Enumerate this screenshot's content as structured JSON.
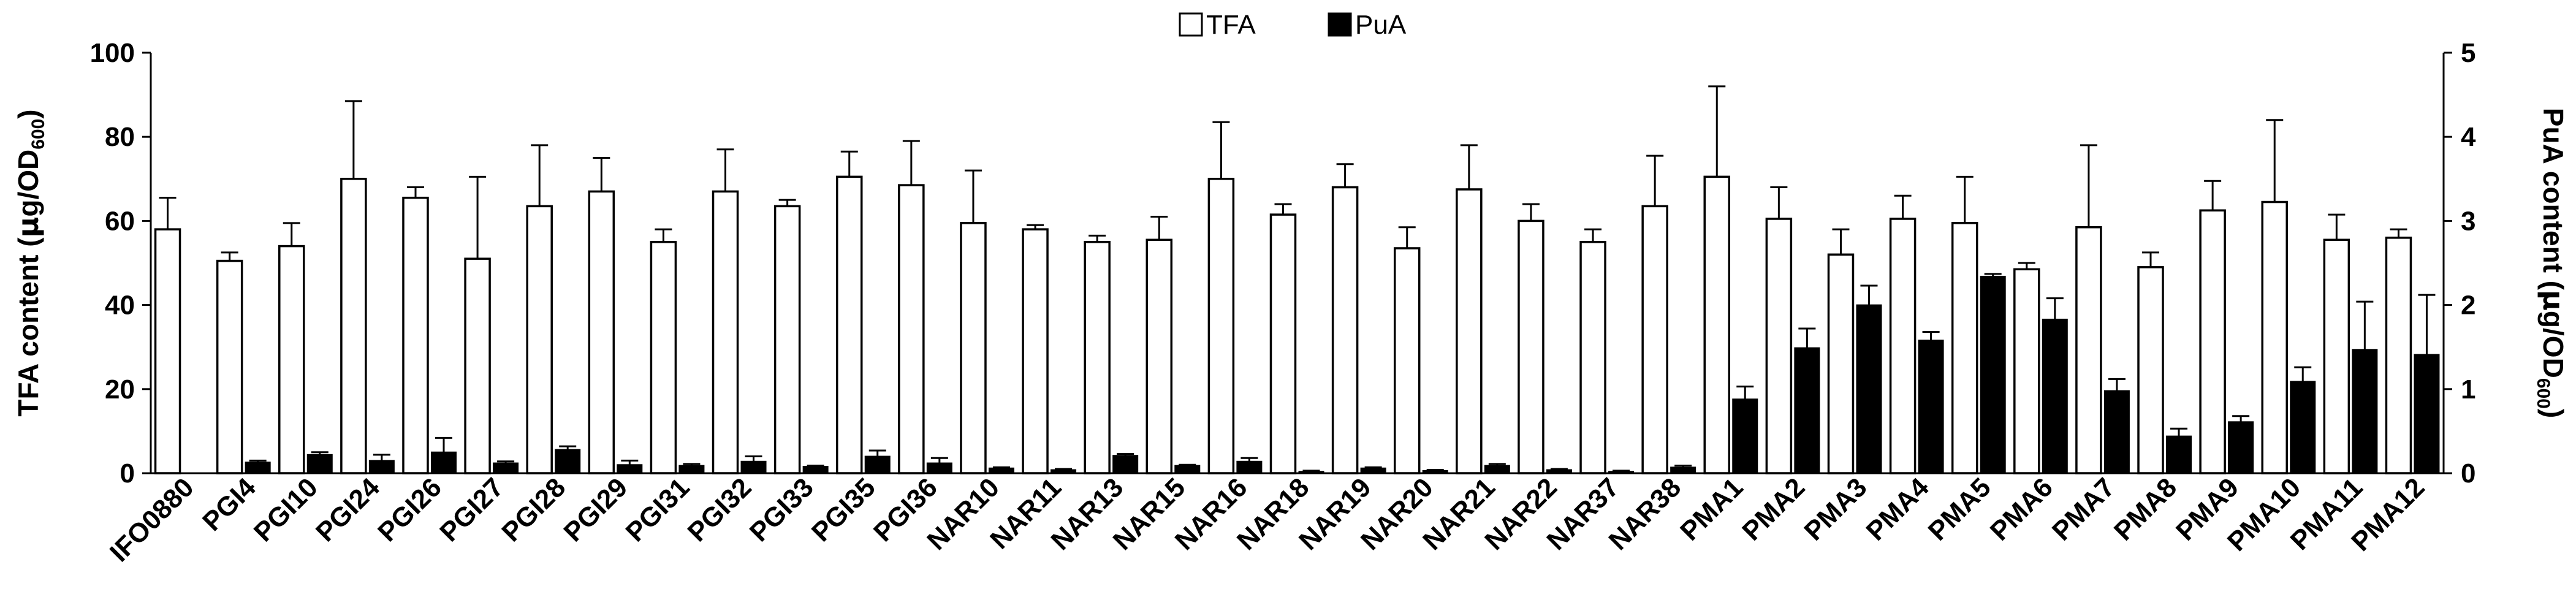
{
  "chart_data": {
    "type": "bar",
    "categories": [
      "IFO0880",
      "PGI4",
      "PGI10",
      "PGI24",
      "PGI26",
      "PGI27",
      "PGI28",
      "PGI29",
      "PGI31",
      "PGI32",
      "PGI33",
      "PGI35",
      "PGI36",
      "NAR10",
      "NAR11",
      "NAR13",
      "NAR15",
      "NAR16",
      "NAR18",
      "NAR19",
      "NAR20",
      "NAR21",
      "NAR22",
      "NAR37",
      "NAR38",
      "PMA1",
      "PMA2",
      "PMA3",
      "PMA4",
      "PMA5",
      "PMA6",
      "PMA7",
      "PMA8",
      "PMA9",
      "PMA10",
      "PMA11",
      "PMA12"
    ],
    "series": [
      {
        "name": "TFA",
        "axis": "left",
        "fill": "#ffffff",
        "values": [
          58,
          50.5,
          54,
          70,
          65.5,
          51,
          63.5,
          67,
          55,
          67,
          63.5,
          70.5,
          68.5,
          59.5,
          58,
          55,
          55.5,
          70,
          61.5,
          68,
          53.5,
          67.5,
          60,
          55,
          63.5,
          70.5,
          60.5,
          52,
          60.5,
          59.5,
          48.5,
          58.5,
          49,
          62.5,
          64.5,
          55.5,
          56
        ],
        "errors": [
          7.5,
          2,
          5.5,
          18.5,
          2.5,
          19.5,
          14.5,
          8,
          3,
          10,
          1.5,
          6,
          10.5,
          12.5,
          1,
          1.5,
          5.5,
          13.5,
          2.5,
          5.5,
          5,
          10.5,
          4,
          3,
          12,
          21.5,
          7.5,
          6,
          5.5,
          11,
          1.5,
          19.5,
          3.5,
          7,
          19.5,
          6,
          2
        ]
      },
      {
        "name": "PuA",
        "axis": "right",
        "fill": "#000000",
        "values": [
          0,
          0.13,
          0.22,
          0.15,
          0.25,
          0.12,
          0.28,
          0.1,
          0.09,
          0.14,
          0.08,
          0.2,
          0.12,
          0.06,
          0.04,
          0.21,
          0.09,
          0.14,
          0.02,
          0.06,
          0.03,
          0.09,
          0.04,
          0.02,
          0.07,
          0.88,
          1.49,
          2.0,
          1.58,
          2.34,
          1.83,
          0.98,
          0.44,
          0.61,
          1.09,
          1.47,
          1.41
        ],
        "errors": [
          0,
          0.02,
          0.03,
          0.07,
          0.17,
          0.02,
          0.04,
          0.05,
          0.02,
          0.06,
          0.01,
          0.07,
          0.06,
          0.01,
          0.01,
          0.02,
          0.01,
          0.04,
          0.01,
          0.01,
          0.01,
          0.02,
          0.01,
          0.01,
          0.02,
          0.15,
          0.23,
          0.23,
          0.1,
          0.03,
          0.25,
          0.14,
          0.09,
          0.07,
          0.17,
          0.57,
          0.71
        ]
      }
    ],
    "ylabel_left_main": "TFA content (",
    "ylabel_left_mu": "μ",
    "ylabel_left_unit": "g/OD",
    "ylabel_left_sub": "600",
    "ylabel_left_close": ")",
    "ylabel_right_main": "PuA content (",
    "ylabel_right_mu": "μ",
    "ylabel_right_unit": "g/OD",
    "ylabel_right_sub": "600",
    "ylabel_right_close": ")",
    "ylim_left": [
      0,
      100
    ],
    "yticks_left": [
      "0",
      "20",
      "40",
      "60",
      "80",
      "100"
    ],
    "ylim_right": [
      0,
      5
    ],
    "yticks_right": [
      "0",
      "1",
      "2",
      "3",
      "4",
      "5"
    ],
    "legend": [
      "TFA",
      "PuA"
    ],
    "legend_position": "top-center",
    "grid": false
  }
}
